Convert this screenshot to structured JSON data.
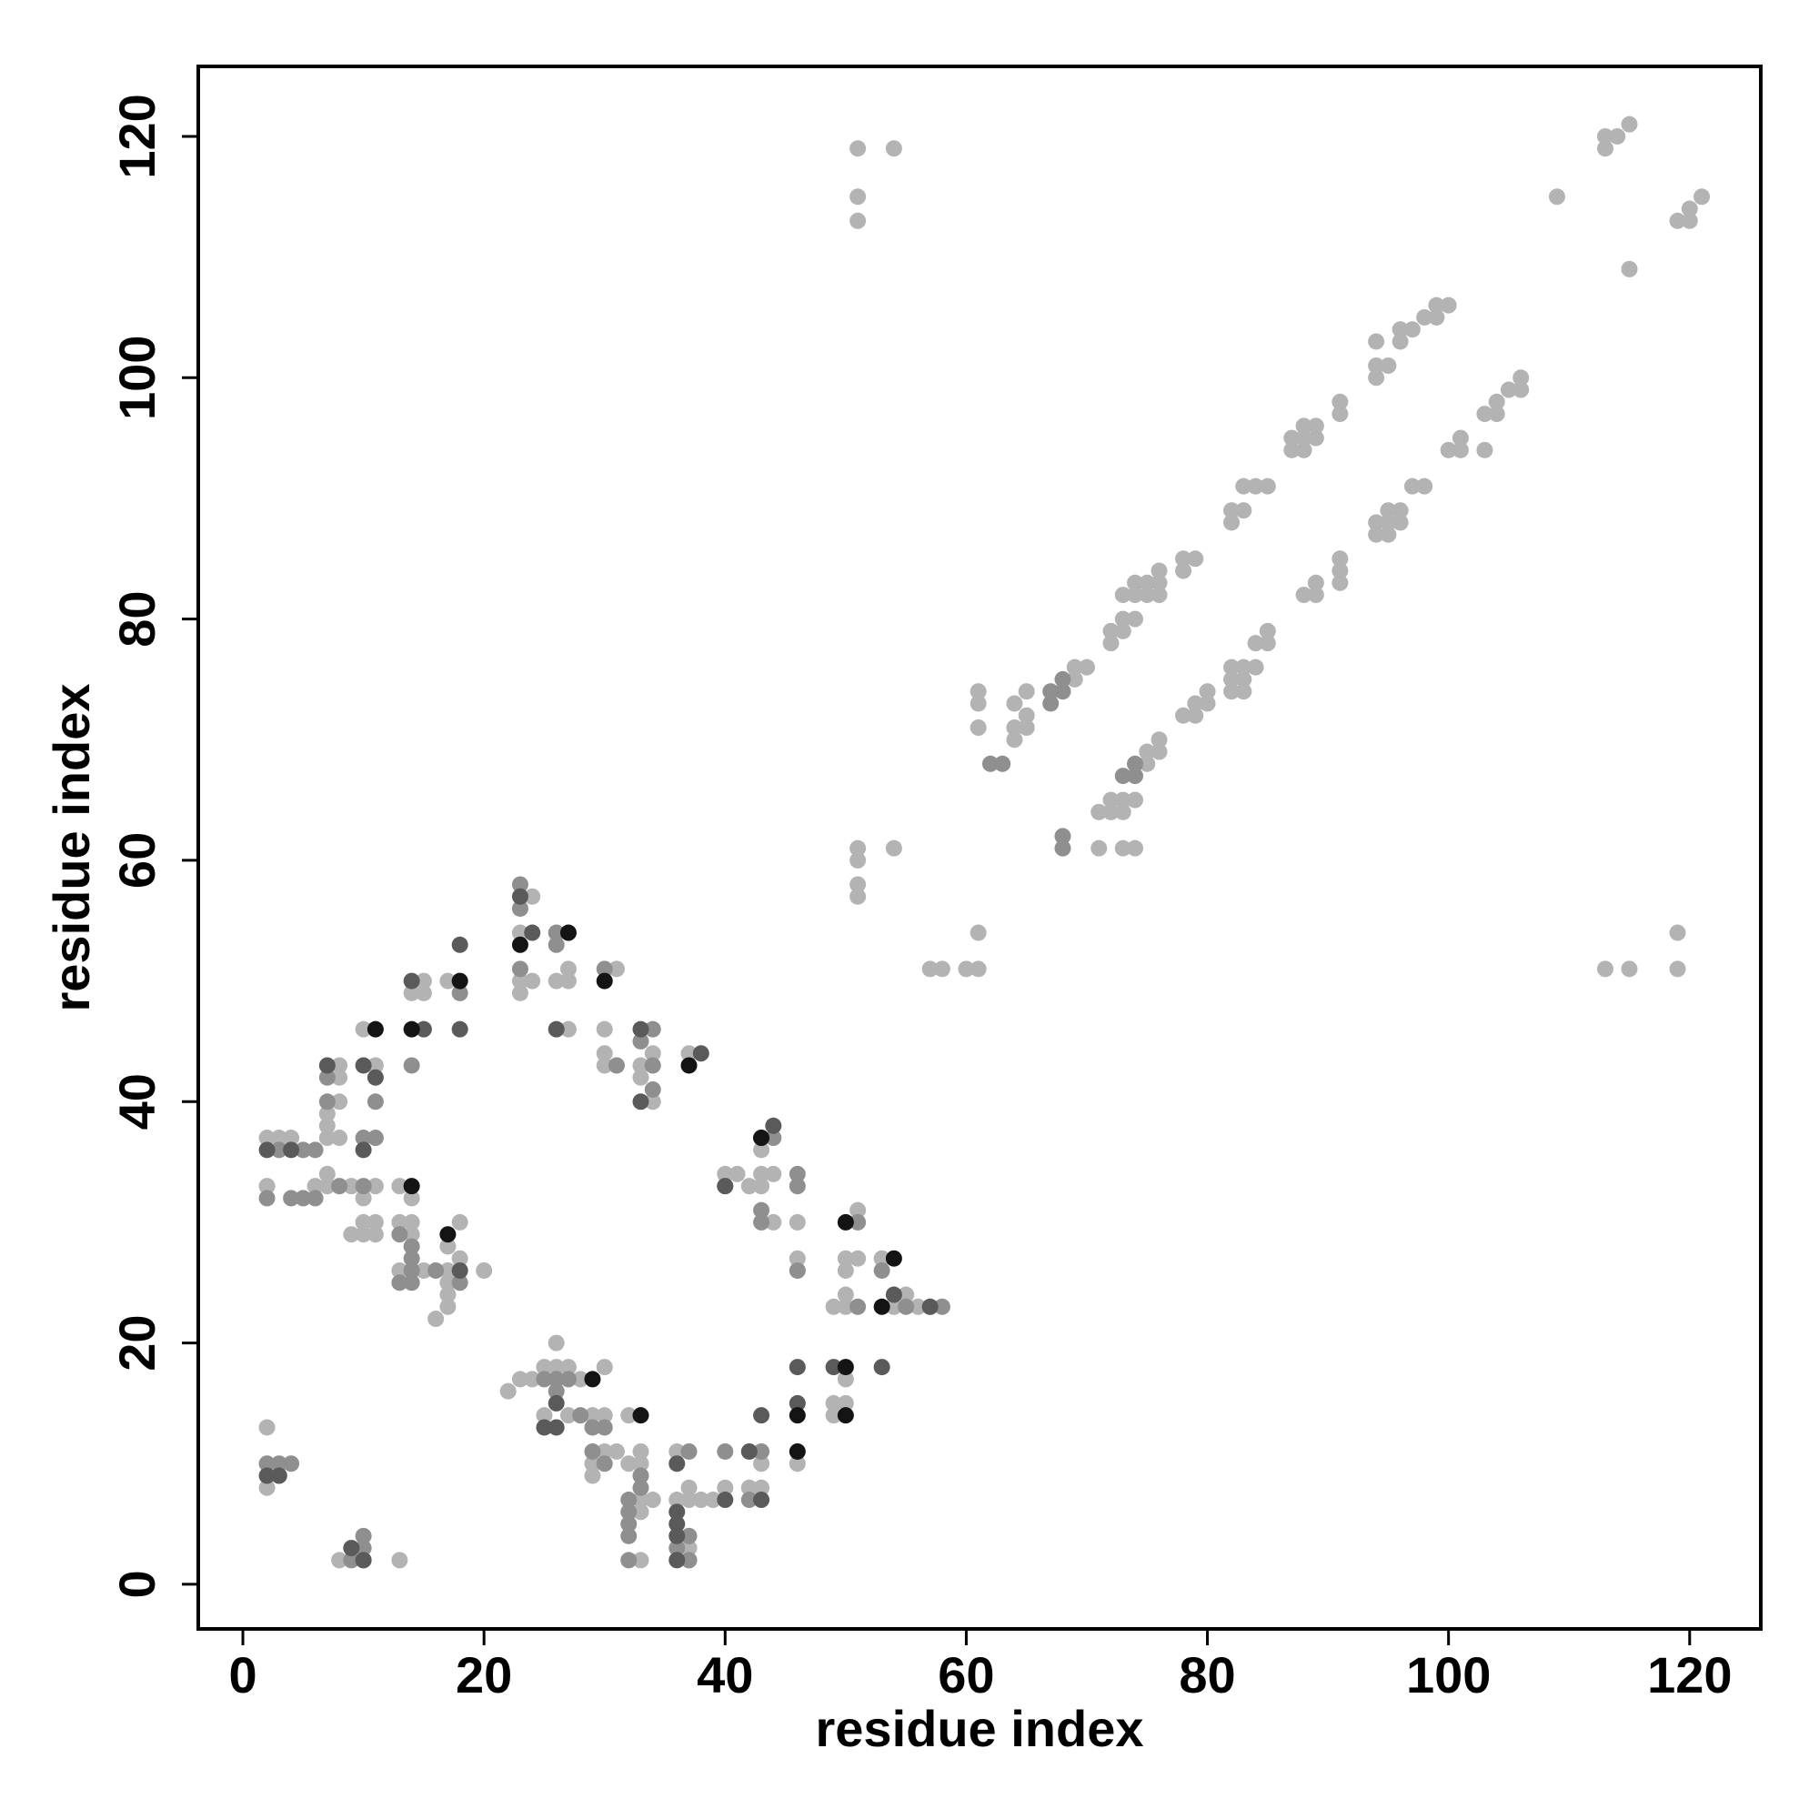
{
  "chart_data": {
    "type": "scatter",
    "xlabel": "residue index",
    "ylabel": "residue index",
    "xlim": [
      -3.7,
      125.9
    ],
    "ylim": [
      -3.7,
      125.8
    ],
    "xticks": [
      0,
      20,
      40,
      60,
      80,
      100,
      120
    ],
    "yticks": [
      0,
      20,
      40,
      60,
      80,
      100,
      120
    ],
    "grid": false,
    "series": [
      {
        "color": "#b3b3b3",
        "x": [
          51,
          54,
          51,
          51,
          109,
          113,
          113,
          114,
          115,
          115,
          119,
          120,
          120,
          121,
          51,
          51,
          51,
          51,
          54,
          57,
          58,
          60,
          61,
          61,
          113,
          115,
          119,
          119,
          61,
          61,
          61,
          64,
          64,
          65,
          65,
          65,
          64,
          69,
          69,
          70,
          72,
          72,
          73,
          73,
          73,
          74,
          74,
          74,
          75,
          75,
          76,
          76,
          76,
          78,
          78,
          79,
          82,
          82,
          83,
          83,
          84,
          85,
          87,
          87,
          88,
          88,
          88,
          89,
          89,
          91,
          91,
          94,
          94,
          94,
          95,
          96,
          96,
          97,
          98,
          99,
          99,
          100,
          71,
          71,
          72,
          72,
          73,
          73,
          74,
          73,
          74,
          75,
          75,
          76,
          76,
          78,
          79,
          79,
          80,
          80,
          82,
          82,
          82,
          83,
          83,
          83,
          84,
          84,
          85,
          85,
          88,
          89,
          89,
          91,
          91,
          91,
          94,
          94,
          95,
          95,
          95,
          96,
          96,
          97,
          98,
          100,
          101,
          101,
          103,
          103,
          104,
          104,
          105,
          106,
          106,
          2,
          3,
          4,
          2,
          6,
          7,
          7,
          7,
          7,
          7,
          8,
          8,
          8,
          8,
          10,
          9,
          10,
          10,
          11,
          11,
          11,
          9,
          10,
          11,
          13,
          13,
          14,
          14,
          14,
          14,
          15,
          15,
          13,
          15,
          16,
          17,
          17,
          17,
          17,
          17,
          18,
          18,
          17,
          20,
          18,
          23,
          23,
          23,
          24,
          24,
          26,
          27,
          27,
          27,
          30,
          30,
          31,
          30,
          33,
          33,
          34,
          34,
          37,
          40,
          41,
          42,
          43,
          44,
          44,
          46,
          46,
          46,
          49,
          50,
          50,
          50,
          50,
          51,
          51,
          53,
          54,
          55,
          56,
          57,
          43,
          43,
          2,
          2,
          8,
          13,
          22,
          23,
          24,
          25,
          26,
          27,
          26,
          27,
          25,
          28,
          29,
          30,
          30,
          29,
          29,
          30,
          31,
          32,
          32,
          33,
          33,
          33,
          33,
          34,
          33,
          36,
          37,
          38,
          39,
          37,
          40,
          42,
          43,
          43,
          37,
          37,
          46,
          49,
          49,
          50,
          50,
          36
        ],
        "y": [
          119,
          119,
          115,
          113,
          115,
          119,
          120,
          120,
          121,
          109,
          113,
          113,
          114,
          115,
          61,
          60,
          58,
          57,
          61,
          51,
          51,
          51,
          51,
          54,
          51,
          51,
          51,
          54,
          74,
          73,
          71,
          73,
          71,
          74,
          72,
          71,
          70,
          75,
          76,
          76,
          78,
          79,
          79,
          80,
          82,
          80,
          82,
          83,
          82,
          83,
          82,
          83,
          84,
          84,
          85,
          85,
          88,
          89,
          89,
          91,
          91,
          91,
          94,
          95,
          94,
          95,
          96,
          95,
          96,
          97,
          98,
          100,
          101,
          103,
          101,
          103,
          104,
          104,
          105,
          105,
          106,
          106,
          61,
          64,
          64,
          65,
          65,
          61,
          61,
          64,
          65,
          68,
          69,
          69,
          70,
          72,
          72,
          73,
          73,
          74,
          74,
          75,
          76,
          74,
          75,
          76,
          76,
          78,
          78,
          79,
          82,
          82,
          83,
          83,
          84,
          85,
          87,
          88,
          87,
          88,
          89,
          88,
          89,
          91,
          91,
          94,
          94,
          95,
          94,
          97,
          97,
          98,
          99,
          99,
          100,
          37,
          37,
          37,
          33,
          33,
          33,
          34,
          37,
          38,
          39,
          37,
          40,
          42,
          43,
          46,
          29,
          29,
          30,
          29,
          30,
          33,
          33,
          32,
          43,
          30,
          33,
          29,
          30,
          32,
          49,
          49,
          50,
          26,
          26,
          22,
          23,
          24,
          25,
          26,
          28,
          27,
          30,
          50,
          26,
          26,
          49,
          50,
          54,
          50,
          57,
          50,
          46,
          50,
          51,
          44,
          46,
          51,
          43,
          42,
          43,
          44,
          40,
          44,
          34,
          34,
          33,
          33,
          34,
          30,
          30,
          26,
          27,
          23,
          23,
          24,
          26,
          27,
          27,
          31,
          27,
          23,
          24,
          23,
          23,
          34,
          36,
          13,
          8,
          2,
          2,
          16,
          17,
          17,
          18,
          18,
          18,
          20,
          14,
          14,
          17,
          14,
          14,
          18,
          9,
          10,
          11,
          11,
          14,
          10,
          10,
          11,
          6,
          7,
          7,
          2,
          7,
          7,
          7,
          7,
          8,
          8,
          8,
          8,
          10,
          2,
          3,
          10,
          14,
          15,
          15,
          17,
          11
        ]
      },
      {
        "color": "#8f8f8f",
        "x": [
          62,
          63,
          67,
          67,
          68,
          68,
          68,
          68,
          73,
          74,
          74,
          2,
          4,
          5,
          6,
          8,
          10,
          10,
          7,
          7,
          11,
          11,
          13,
          14,
          14,
          14,
          14,
          14,
          16,
          18,
          18,
          13,
          3,
          5,
          6,
          23,
          23,
          23,
          26,
          26,
          30,
          34,
          31,
          33,
          34,
          34,
          40,
          43,
          43,
          46,
          46,
          44,
          51,
          53,
          55,
          58,
          51,
          46,
          2,
          3,
          4,
          9,
          10,
          10,
          10,
          25,
          26,
          26,
          28,
          29,
          30,
          29,
          30,
          32,
          32,
          32,
          32,
          32,
          33,
          33,
          37,
          37,
          37,
          36,
          40,
          42,
          43,
          27
        ],
        "y": [
          68,
          68,
          73,
          74,
          75,
          74,
          61,
          62,
          67,
          67,
          68,
          32,
          32,
          32,
          32,
          33,
          33,
          37,
          42,
          40,
          40,
          37,
          29,
          27,
          28,
          25,
          26,
          43,
          26,
          25,
          49,
          25,
          36,
          36,
          36,
          58,
          56,
          51,
          53,
          54,
          51,
          41,
          43,
          45,
          46,
          43,
          33,
          31,
          30,
          33,
          34,
          37,
          23,
          26,
          23,
          23,
          30,
          26,
          10,
          10,
          10,
          2,
          2,
          4,
          3,
          17,
          16,
          17,
          14,
          13,
          13,
          11,
          10,
          7,
          6,
          5,
          4,
          2,
          8,
          9,
          11,
          4,
          2,
          3,
          11,
          7,
          11,
          17
        ]
      },
      {
        "color": "#5a5a5a",
        "x": [
          2,
          4,
          7,
          10,
          11,
          10,
          14,
          15,
          18,
          18,
          18,
          23,
          24,
          26,
          33,
          33,
          38,
          43,
          44,
          40,
          54,
          57,
          2,
          3,
          9,
          10,
          25,
          26,
          26,
          36,
          36,
          36,
          36,
          36,
          40,
          43,
          46,
          49,
          53,
          42,
          43,
          46
        ],
        "y": [
          36,
          36,
          43,
          43,
          42,
          36,
          50,
          46,
          53,
          46,
          26,
          57,
          54,
          46,
          46,
          40,
          44,
          37,
          38,
          33,
          24,
          23,
          9,
          9,
          3,
          2,
          13,
          13,
          15,
          10,
          6,
          5,
          4,
          2,
          7,
          14,
          18,
          18,
          18,
          11,
          7,
          15
        ]
      },
      {
        "color": "#141414",
        "x": [
          14,
          17,
          11,
          14,
          18,
          23,
          27,
          30,
          37,
          43,
          50,
          54,
          53,
          29,
          33,
          46,
          46,
          50,
          50
        ],
        "y": [
          33,
          29,
          46,
          46,
          50,
          53,
          54,
          50,
          43,
          37,
          30,
          27,
          23,
          17,
          14,
          14,
          11,
          18,
          14
        ]
      }
    ]
  }
}
